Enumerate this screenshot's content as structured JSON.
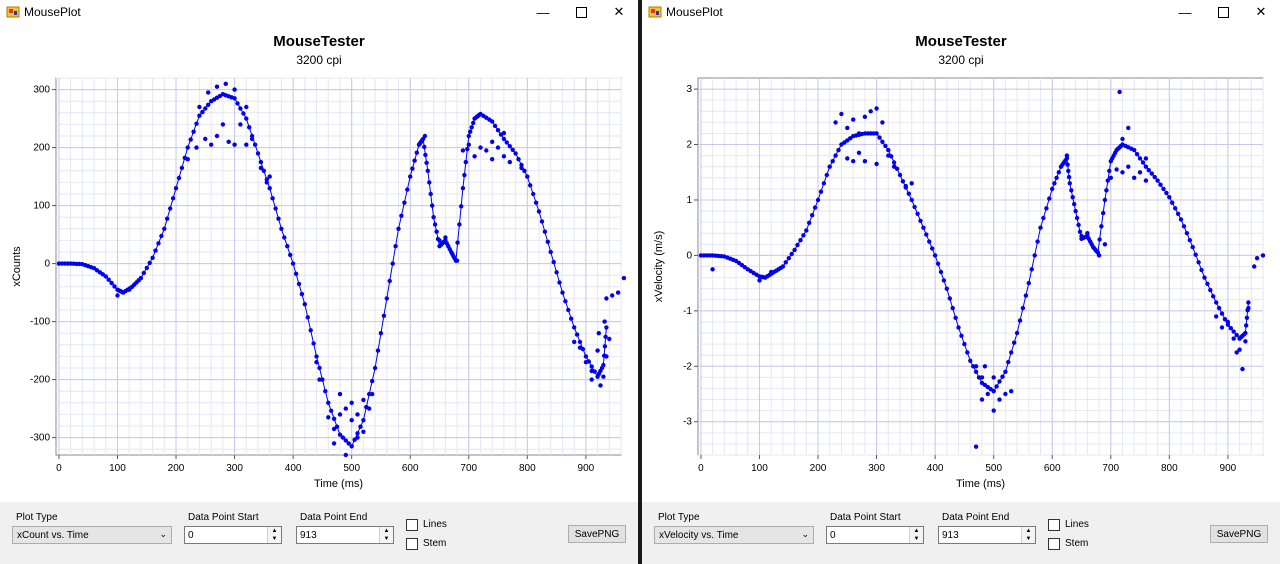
{
  "windows": [
    {
      "title": "MousePlot",
      "chart_title": "MouseTester",
      "chart_subtitle": "3200 cpi",
      "controls": {
        "plot_type_label": "Plot Type",
        "plot_type_value": "xCount vs. Time",
        "start_label": "Data Point Start",
        "start_value": "0",
        "end_label": "Data Point End",
        "end_value": "913",
        "lines_label": "Lines",
        "stem_label": "Stem",
        "save_label": "SavePNG"
      }
    },
    {
      "title": "MousePlot",
      "chart_title": "MouseTester",
      "chart_subtitle": "3200 cpi",
      "controls": {
        "plot_type_label": "Plot Type",
        "plot_type_value": "xVelocity vs. Time",
        "start_label": "Data Point Start",
        "start_value": "0",
        "end_label": "Data Point End",
        "end_value": "913",
        "lines_label": "Lines",
        "stem_label": "Stem",
        "save_label": "SavePNG"
      }
    }
  ],
  "chart_data": [
    {
      "type": "scatter",
      "title": "MouseTester",
      "subtitle": "3200 cpi",
      "xlabel": "Time (ms)",
      "ylabel": "xCounts",
      "xlim": [
        -5,
        960
      ],
      "ylim": [
        -330,
        320
      ],
      "xticks": [
        0,
        100,
        200,
        300,
        400,
        500,
        600,
        700,
        800,
        900
      ],
      "yticks": [
        -300,
        -200,
        -100,
        0,
        100,
        200,
        300
      ],
      "grid": true,
      "color": "#0000ee",
      "series": [
        {
          "values": [],
          "trend": [
            [
              0,
              0
            ],
            [
              20,
              0
            ],
            [
              40,
              -1
            ],
            [
              60,
              -8
            ],
            [
              80,
              -22
            ],
            [
              100,
              -45
            ],
            [
              110,
              -50
            ],
            [
              125,
              -40
            ],
            [
              140,
              -25
            ],
            [
              160,
              10
            ],
            [
              180,
              60
            ],
            [
              200,
              130
            ],
            [
              220,
              200
            ],
            [
              240,
              255
            ],
            [
              260,
              280
            ],
            [
              280,
              292
            ],
            [
              300,
              285
            ],
            [
              320,
              250
            ],
            [
              340,
              190
            ],
            [
              360,
              130
            ],
            [
              380,
              60
            ],
            [
              400,
              0
            ],
            [
              420,
              -70
            ],
            [
              440,
              -160
            ],
            [
              460,
              -240
            ],
            [
              480,
              -295
            ],
            [
              500,
              -315
            ],
            [
              520,
              -270
            ],
            [
              540,
              -180
            ],
            [
              560,
              -60
            ],
            [
              580,
              60
            ],
            [
              600,
              150
            ],
            [
              615,
              205
            ],
            [
              622,
              215
            ],
            [
              630,
              160
            ],
            [
              640,
              80
            ],
            [
              650,
              30
            ],
            [
              660,
              40
            ],
            [
              670,
              20
            ],
            [
              678,
              5
            ],
            [
              690,
              130
            ],
            [
              700,
              220
            ],
            [
              710,
              250
            ],
            [
              720,
              258
            ],
            [
              740,
              245
            ],
            [
              760,
              215
            ],
            [
              780,
              190
            ],
            [
              800,
              150
            ],
            [
              820,
              90
            ],
            [
              840,
              20
            ],
            [
              860,
              -50
            ],
            [
              880,
              -110
            ],
            [
              900,
              -160
            ],
            [
              920,
              -195
            ],
            [
              930,
              -175
            ],
            [
              935,
              -110
            ]
          ],
          "spread_points": [
            [
              220,
              180
            ],
            [
              235,
              200
            ],
            [
              250,
              215
            ],
            [
              260,
              205
            ],
            [
              270,
              220
            ],
            [
              280,
              240
            ],
            [
              290,
              210
            ],
            [
              300,
              205
            ],
            [
              310,
              240
            ],
            [
              320,
              205
            ],
            [
              330,
              215
            ],
            [
              240,
              270
            ],
            [
              255,
              295
            ],
            [
              270,
              305
            ],
            [
              285,
              310
            ],
            [
              300,
              300
            ],
            [
              320,
              270
            ],
            [
              345,
              165
            ],
            [
              355,
              140
            ],
            [
              360,
              150
            ],
            [
              460,
              -265
            ],
            [
              470,
              -285
            ],
            [
              480,
              -260
            ],
            [
              490,
              -250
            ],
            [
              500,
              -270
            ],
            [
              510,
              -260
            ],
            [
              520,
              -290
            ],
            [
              530,
              -250
            ],
            [
              470,
              -310
            ],
            [
              490,
              -330
            ],
            [
              510,
              -300
            ],
            [
              480,
              -225
            ],
            [
              500,
              -240
            ],
            [
              520,
              -235
            ],
            [
              535,
              -225
            ],
            [
              440,
              -170
            ],
            [
              445,
              -200
            ],
            [
              700,
              205
            ],
            [
              710,
              185
            ],
            [
              720,
              200
            ],
            [
              730,
              195
            ],
            [
              740,
              180
            ],
            [
              750,
              200
            ],
            [
              760,
              185
            ],
            [
              770,
              175
            ],
            [
              790,
              165
            ],
            [
              690,
              195
            ],
            [
              740,
              210
            ],
            [
              760,
              225
            ],
            [
              880,
              -135
            ],
            [
              890,
              -145
            ],
            [
              900,
              -170
            ],
            [
              910,
              -185
            ],
            [
              920,
              -150
            ],
            [
              925,
              -210
            ],
            [
              930,
              -195
            ],
            [
              935,
              -60
            ],
            [
              940,
              -130
            ],
            [
              945,
              -55
            ],
            [
              955,
              -50
            ],
            [
              965,
              -25
            ],
            [
              922,
              -120
            ],
            [
              935,
              -160
            ],
            [
              100,
              -55
            ],
            [
              120,
              -45
            ],
            [
              625,
              220
            ],
            [
              650,
              40
            ],
            [
              660,
              45
            ],
            [
              680,
              5
            ],
            [
              910,
              -200
            ],
            [
              932,
              -100
            ]
          ]
        }
      ]
    },
    {
      "type": "scatter",
      "title": "MouseTester",
      "subtitle": "3200 cpi",
      "xlabel": "Time (ms)",
      "ylabel": "xVelocity (m/s)",
      "xlim": [
        -5,
        960
      ],
      "ylim": [
        -3.6,
        3.2
      ],
      "xticks": [
        0,
        100,
        200,
        300,
        400,
        500,
        600,
        700,
        800,
        900
      ],
      "yticks": [
        -3,
        -2,
        -1,
        0,
        1,
        2,
        3
      ],
      "grid": true,
      "color": "#0000ee",
      "series": [
        {
          "values": [],
          "trend": [
            [
              0,
              0
            ],
            [
              20,
              0
            ],
            [
              40,
              -0.02
            ],
            [
              60,
              -0.1
            ],
            [
              80,
              -0.25
            ],
            [
              100,
              -0.38
            ],
            [
              110,
              -0.4
            ],
            [
              125,
              -0.3
            ],
            [
              140,
              -0.2
            ],
            [
              160,
              0.1
            ],
            [
              180,
              0.45
            ],
            [
              200,
              1.0
            ],
            [
              220,
              1.6
            ],
            [
              240,
              2.0
            ],
            [
              260,
              2.15
            ],
            [
              280,
              2.2
            ],
            [
              300,
              2.2
            ],
            [
              320,
              1.9
            ],
            [
              340,
              1.45
            ],
            [
              360,
              1.0
            ],
            [
              380,
              0.5
            ],
            [
              400,
              0
            ],
            [
              420,
              -0.6
            ],
            [
              440,
              -1.3
            ],
            [
              460,
              -1.9
            ],
            [
              480,
              -2.3
            ],
            [
              500,
              -2.45
            ],
            [
              520,
              -2.1
            ],
            [
              540,
              -1.4
            ],
            [
              560,
              -0.5
            ],
            [
              580,
              0.5
            ],
            [
              600,
              1.2
            ],
            [
              615,
              1.6
            ],
            [
              625,
              1.75
            ],
            [
              630,
              1.3
            ],
            [
              640,
              0.8
            ],
            [
              650,
              0.3
            ],
            [
              660,
              0.35
            ],
            [
              670,
              0.15
            ],
            [
              678,
              0.05
            ],
            [
              690,
              1.0
            ],
            [
              700,
              1.7
            ],
            [
              710,
              1.9
            ],
            [
              720,
              2.0
            ],
            [
              740,
              1.9
            ],
            [
              760,
              1.6
            ],
            [
              780,
              1.35
            ],
            [
              800,
              1.05
            ],
            [
              820,
              0.65
            ],
            [
              840,
              0.15
            ],
            [
              860,
              -0.4
            ],
            [
              880,
              -0.85
            ],
            [
              900,
              -1.25
            ],
            [
              920,
              -1.5
            ],
            [
              930,
              -1.4
            ],
            [
              935,
              -0.85
            ]
          ],
          "spread_points": [
            [
              230,
              2.4
            ],
            [
              240,
              2.55
            ],
            [
              250,
              2.3
            ],
            [
              260,
              2.45
            ],
            [
              270,
              2.2
            ],
            [
              280,
              2.5
            ],
            [
              290,
              2.6
            ],
            [
              300,
              2.65
            ],
            [
              310,
              2.4
            ],
            [
              320,
              1.8
            ],
            [
              250,
              1.75
            ],
            [
              260,
              1.7
            ],
            [
              270,
              1.85
            ],
            [
              280,
              1.7
            ],
            [
              300,
              1.65
            ],
            [
              330,
              1.6
            ],
            [
              350,
              1.25
            ],
            [
              360,
              1.3
            ],
            [
              470,
              -2.0
            ],
            [
              480,
              -2.6
            ],
            [
              490,
              -2.5
            ],
            [
              500,
              -2.2
            ],
            [
              510,
              -2.6
            ],
            [
              520,
              -2.5
            ],
            [
              530,
              -2.45
            ],
            [
              500,
              -2.8
            ],
            [
              480,
              -2.2
            ],
            [
              485,
              -2.0
            ],
            [
              470,
              -3.45
            ],
            [
              700,
              1.4
            ],
            [
              710,
              1.55
            ],
            [
              720,
              1.5
            ],
            [
              730,
              1.6
            ],
            [
              740,
              1.4
            ],
            [
              750,
              1.5
            ],
            [
              760,
              1.35
            ],
            [
              720,
              2.1
            ],
            [
              730,
              2.3
            ],
            [
              715,
              2.95
            ],
            [
              760,
              1.75
            ],
            [
              880,
              -1.1
            ],
            [
              890,
              -1.3
            ],
            [
              900,
              -1.2
            ],
            [
              910,
              -1.5
            ],
            [
              920,
              -1.7
            ],
            [
              925,
              -2.05
            ],
            [
              930,
              -1.55
            ],
            [
              935,
              -0.95
            ],
            [
              945,
              -0.2
            ],
            [
              950,
              -0.05
            ],
            [
              960,
              0.0
            ],
            [
              915,
              -1.75
            ],
            [
              20,
              -0.25
            ],
            [
              100,
              -0.45
            ],
            [
              120,
              -0.3
            ],
            [
              625,
              1.8
            ],
            [
              650,
              0.35
            ],
            [
              660,
              0.4
            ],
            [
              680,
              0.0
            ],
            [
              690,
              0.2
            ]
          ]
        }
      ]
    }
  ]
}
